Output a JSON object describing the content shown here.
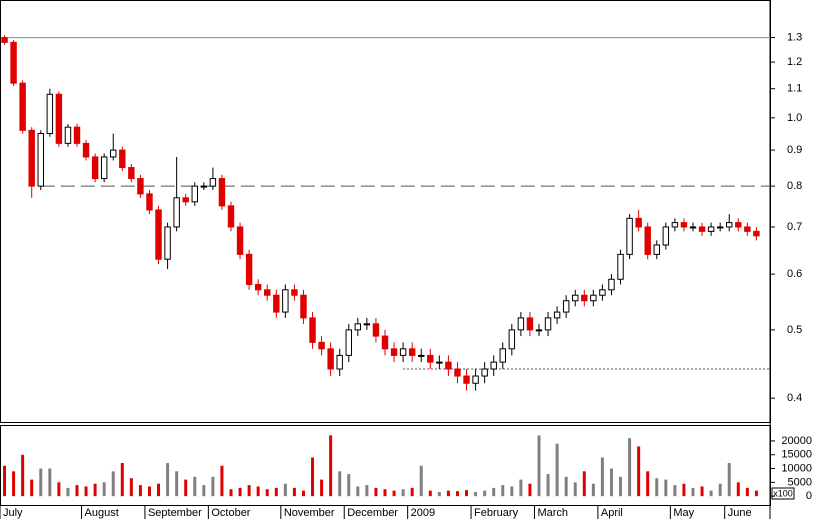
{
  "chart_data": {
    "type": "candlestick",
    "x": [
      0,
      1,
      2,
      3,
      4,
      5,
      6,
      7,
      8,
      9,
      10,
      11,
      12,
      13,
      14,
      15,
      16,
      17,
      18,
      19,
      20,
      21,
      22,
      23,
      24,
      25,
      26,
      27,
      28,
      29,
      30,
      31,
      32,
      33,
      34,
      35,
      36,
      37,
      38,
      39,
      40,
      41,
      42,
      43,
      44,
      45,
      46,
      47,
      48,
      49,
      50,
      51,
      52,
      53,
      54,
      55,
      56,
      57,
      58,
      59,
      60,
      61,
      62,
      63,
      64,
      65,
      66,
      67,
      68,
      69,
      70,
      71,
      72,
      73,
      74,
      75,
      76,
      77,
      78,
      79,
      80,
      81,
      82,
      83
    ],
    "open": [
      1.3,
      1.28,
      1.12,
      0.96,
      0.8,
      0.95,
      1.08,
      0.92,
      0.97,
      0.92,
      0.88,
      0.82,
      0.88,
      0.9,
      0.85,
      0.82,
      0.78,
      0.74,
      0.63,
      0.7,
      0.77,
      0.76,
      0.8,
      0.8,
      0.82,
      0.75,
      0.7,
      0.64,
      0.58,
      0.57,
      0.56,
      0.53,
      0.57,
      0.56,
      0.52,
      0.48,
      0.47,
      0.44,
      0.46,
      0.5,
      0.51,
      0.51,
      0.49,
      0.47,
      0.46,
      0.47,
      0.46,
      0.46,
      0.45,
      0.45,
      0.44,
      0.43,
      0.42,
      0.43,
      0.44,
      0.45,
      0.47,
      0.5,
      0.52,
      0.5,
      0.5,
      0.52,
      0.53,
      0.55,
      0.56,
      0.55,
      0.56,
      0.57,
      0.59,
      0.64,
      0.72,
      0.7,
      0.64,
      0.66,
      0.7,
      0.71,
      0.7,
      0.7,
      0.69,
      0.7,
      0.7,
      0.71,
      0.7,
      0.69
    ],
    "high": [
      1.31,
      1.29,
      1.13,
      0.97,
      0.96,
      1.1,
      1.09,
      0.98,
      0.98,
      0.93,
      0.89,
      0.89,
      0.95,
      0.91,
      0.86,
      0.83,
      0.79,
      0.75,
      0.71,
      0.88,
      0.78,
      0.81,
      0.81,
      0.85,
      0.83,
      0.76,
      0.71,
      0.65,
      0.59,
      0.58,
      0.57,
      0.58,
      0.58,
      0.57,
      0.53,
      0.49,
      0.48,
      0.47,
      0.51,
      0.52,
      0.52,
      0.52,
      0.5,
      0.48,
      0.48,
      0.48,
      0.47,
      0.47,
      0.46,
      0.46,
      0.45,
      0.44,
      0.44,
      0.45,
      0.46,
      0.48,
      0.51,
      0.53,
      0.53,
      0.51,
      0.53,
      0.54,
      0.56,
      0.57,
      0.57,
      0.57,
      0.58,
      0.6,
      0.65,
      0.73,
      0.74,
      0.71,
      0.67,
      0.71,
      0.72,
      0.72,
      0.71,
      0.71,
      0.71,
      0.71,
      0.73,
      0.72,
      0.71,
      0.7
    ],
    "low": [
      1.27,
      1.11,
      0.95,
      0.77,
      0.79,
      0.94,
      0.91,
      0.91,
      0.91,
      0.87,
      0.81,
      0.81,
      0.87,
      0.84,
      0.81,
      0.77,
      0.73,
      0.62,
      0.61,
      0.69,
      0.75,
      0.75,
      0.79,
      0.79,
      0.74,
      0.69,
      0.63,
      0.57,
      0.56,
      0.55,
      0.52,
      0.52,
      0.55,
      0.51,
      0.47,
      0.46,
      0.43,
      0.43,
      0.45,
      0.49,
      0.5,
      0.48,
      0.46,
      0.45,
      0.45,
      0.45,
      0.45,
      0.44,
      0.44,
      0.43,
      0.42,
      0.41,
      0.41,
      0.42,
      0.43,
      0.44,
      0.46,
      0.49,
      0.49,
      0.49,
      0.49,
      0.51,
      0.52,
      0.54,
      0.54,
      0.54,
      0.55,
      0.56,
      0.58,
      0.63,
      0.69,
      0.63,
      0.63,
      0.65,
      0.69,
      0.69,
      0.69,
      0.68,
      0.68,
      0.69,
      0.69,
      0.69,
      0.68,
      0.67
    ],
    "close": [
      1.28,
      1.12,
      0.96,
      0.8,
      0.95,
      1.08,
      0.92,
      0.97,
      0.92,
      0.88,
      0.82,
      0.88,
      0.9,
      0.85,
      0.82,
      0.78,
      0.74,
      0.63,
      0.7,
      0.77,
      0.76,
      0.8,
      0.8,
      0.82,
      0.75,
      0.7,
      0.64,
      0.58,
      0.57,
      0.56,
      0.53,
      0.57,
      0.56,
      0.52,
      0.48,
      0.47,
      0.44,
      0.46,
      0.5,
      0.51,
      0.51,
      0.49,
      0.47,
      0.46,
      0.47,
      0.46,
      0.46,
      0.45,
      0.45,
      0.44,
      0.43,
      0.42,
      0.43,
      0.44,
      0.45,
      0.47,
      0.5,
      0.52,
      0.5,
      0.5,
      0.52,
      0.53,
      0.55,
      0.56,
      0.55,
      0.56,
      0.57,
      0.59,
      0.64,
      0.72,
      0.7,
      0.64,
      0.66,
      0.7,
      0.71,
      0.7,
      0.7,
      0.69,
      0.7,
      0.7,
      0.71,
      0.7,
      0.69,
      0.68
    ],
    "volume": [
      11000,
      9000,
      15000,
      6000,
      10000,
      10000,
      5000,
      3000,
      4000,
      3500,
      4500,
      5000,
      9000,
      12000,
      6500,
      4000,
      3500,
      4500,
      12000,
      9000,
      6000,
      7000,
      4000,
      7000,
      11000,
      2500,
      3000,
      4000,
      3500,
      2500,
      3000,
      4500,
      3000,
      2000,
      14000,
      6000,
      22000,
      9000,
      8000,
      3500,
      4000,
      3000,
      2500,
      2000,
      2500,
      3000,
      11000,
      2000,
      1500,
      2000,
      1800,
      2200,
      1500,
      2000,
      3000,
      4000,
      3500,
      6000,
      4500,
      22000,
      8000,
      19000,
      7000,
      5000,
      9000,
      4500,
      14000,
      10000,
      7000,
      21000,
      18000,
      9000,
      6500,
      6000,
      4000,
      4500,
      3000,
      3500,
      2000,
      4500,
      12000,
      5000,
      3000,
      2000
    ],
    "xlim": [
      -0.5,
      84.5
    ],
    "xticks": [
      {
        "value": 0,
        "label": "July"
      },
      {
        "value": 9,
        "label": "August"
      },
      {
        "value": 16,
        "label": "September"
      },
      {
        "value": 23,
        "label": "October"
      },
      {
        "value": 31,
        "label": "November"
      },
      {
        "value": 38,
        "label": "December"
      },
      {
        "value": 45,
        "label": "2009"
      },
      {
        "value": 52,
        "label": "February"
      },
      {
        "value": 59,
        "label": "March"
      },
      {
        "value": 66,
        "label": "April"
      },
      {
        "value": 74,
        "label": "May"
      },
      {
        "value": 80,
        "label": "June"
      }
    ],
    "ylim": [
      0.37,
      1.47
    ],
    "log_scale": true,
    "yticks": [
      0.4,
      0.5,
      0.6,
      0.7,
      0.8,
      0.9,
      {
        "value": 1,
        "label": "1.0"
      },
      1.1,
      1.2,
      1.3
    ],
    "volume_ylim": [
      -3200,
      25400
    ],
    "volume_yticks": [
      0,
      5000,
      10000,
      15000,
      20000
    ],
    "volume_unit_label": "x100",
    "up_color": "#000000",
    "down_color": "#e00000",
    "volume_up_color": "#808080",
    "reference_lines": [
      {
        "value": 1.3,
        "from": 0,
        "style": "solid",
        "color": "#4caf80"
      },
      {
        "value": 0.8,
        "from": 4,
        "style": "dashed",
        "color": "#555555"
      },
      {
        "value": 0.44,
        "from": 44,
        "style": "dotted",
        "color": "#555555"
      }
    ]
  }
}
